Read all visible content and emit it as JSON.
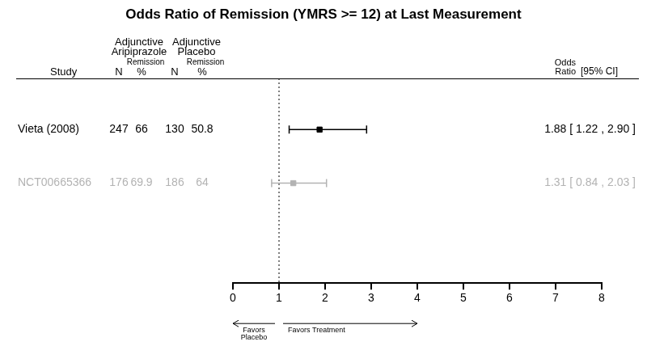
{
  "chart_data": {
    "type": "forest",
    "title": "Odds Ratio of Remission (YMRS >= 12) at Last Measurement",
    "header": {
      "study": "Study",
      "groups": [
        [
          "Adjunctive",
          "Aripiprazole"
        ],
        [
          "Adjunctive",
          "Placebo"
        ]
      ],
      "n": "N",
      "remission": [
        "Remission",
        "%"
      ],
      "estimate": [
        "Odds",
        "Ratio"
      ],
      "interval": "[95% CI]"
    },
    "studies": [
      {
        "name": "Vieta (2008)",
        "n": [
          247,
          130
        ],
        "remission": [
          66,
          50.8
        ],
        "odds_ratio": 1.88,
        "ci": [
          1.22,
          2.9
        ],
        "label": "1.88 [ 1.22 , 2.90 ]",
        "color": "#000000"
      },
      {
        "name": "NCT00665366",
        "n": [
          176,
          186
        ],
        "remission": [
          69.9,
          64
        ],
        "odds_ratio": 1.31,
        "ci": [
          0.84,
          2.03
        ],
        "label": "1.31 [ 0.84 , 2.03 ]",
        "color": "#b3b3b3"
      }
    ],
    "xlim": [
      0,
      8
    ],
    "xticks": [
      0,
      1,
      2,
      3,
      4,
      5,
      6,
      7,
      8
    ],
    "reference_line": 1,
    "arrows": [
      {
        "label": [
          "Favors",
          "Placebo"
        ],
        "from": 1,
        "to": 0
      },
      {
        "label": [
          "Favors Treatment"
        ],
        "from": 1,
        "to": 4
      }
    ],
    "grid": false
  }
}
